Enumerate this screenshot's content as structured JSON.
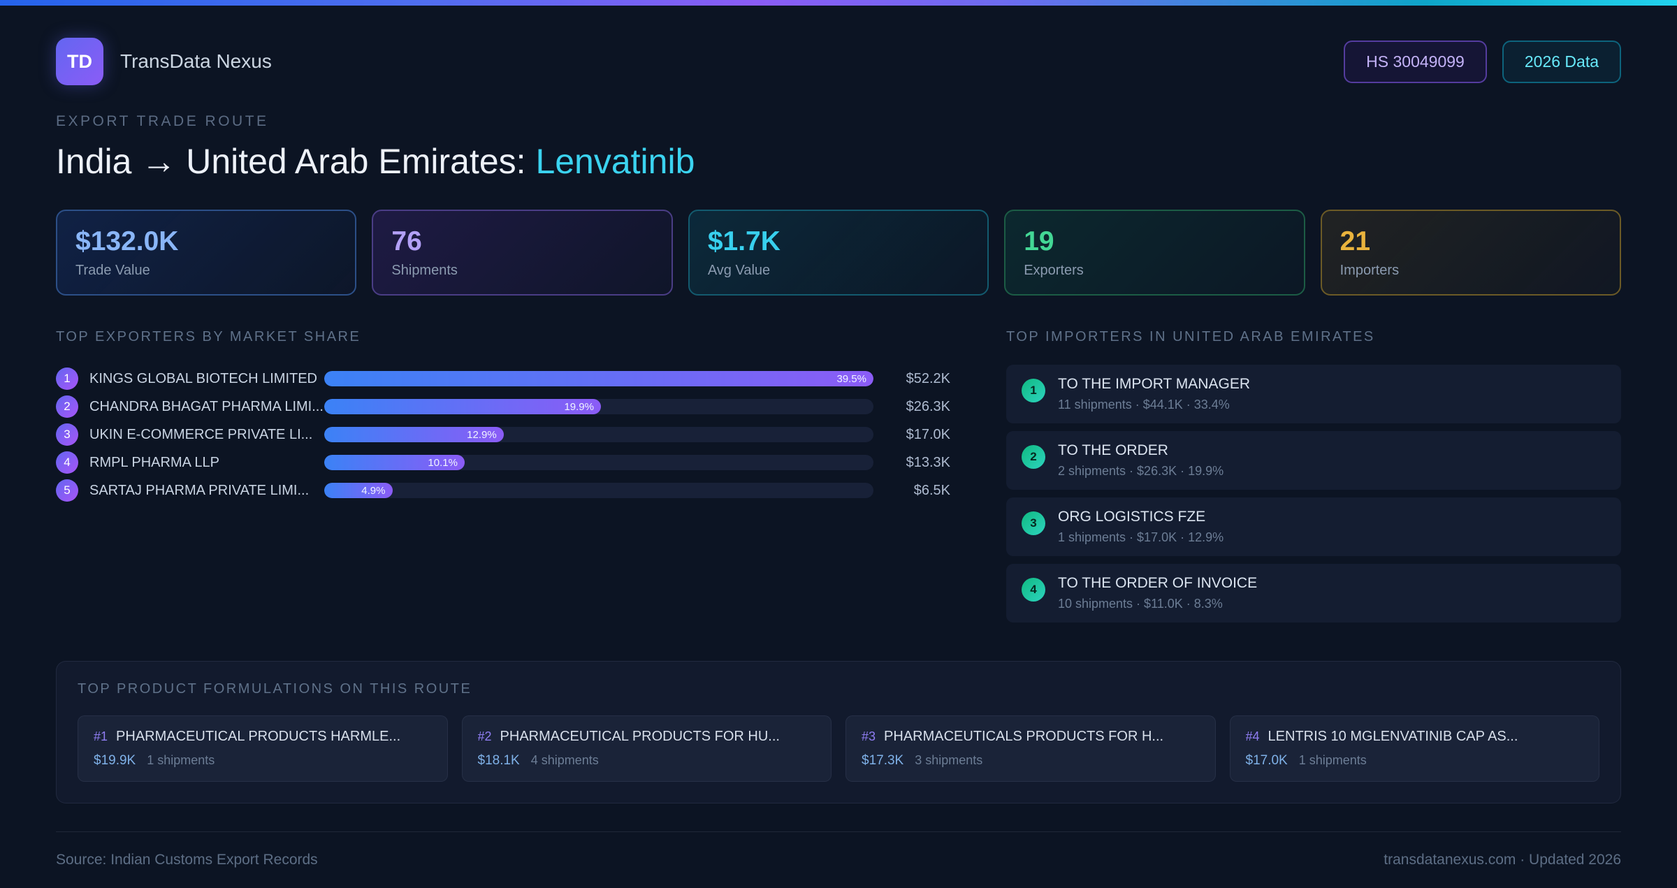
{
  "header": {
    "logo": "TD",
    "app_name": "TransData Nexus",
    "hs_badge": "HS 30049099",
    "year_badge": "2026 Data"
  },
  "hero": {
    "eyebrow": "EXPORT TRADE ROUTE",
    "title_main": "India → United Arab Emirates: ",
    "title_accent": "Lenvatinib"
  },
  "stats": [
    {
      "value": "$132.0K",
      "label": "Trade Value",
      "accent": "#8ab6f8"
    },
    {
      "value": "76",
      "label": "Shipments",
      "accent": "#b3a0f7"
    },
    {
      "value": "$1.7K",
      "label": "Avg Value",
      "accent": "#38d0ee"
    },
    {
      "value": "19",
      "label": "Exporters",
      "accent": "#43d795"
    },
    {
      "value": "21",
      "label": "Importers",
      "accent": "#e9b33d"
    }
  ],
  "exporters": {
    "heading": "TOP EXPORTERS BY MARKET SHARE",
    "rows": [
      {
        "rank": "1",
        "name": "KINGS GLOBAL BIOTECH LIMITED",
        "pct": "39.5%",
        "value": "$52.2K"
      },
      {
        "rank": "2",
        "name": "CHANDRA BHAGAT PHARMA LIMI...",
        "pct": "19.9%",
        "value": "$26.3K"
      },
      {
        "rank": "3",
        "name": "UKIN E-COMMERCE PRIVATE LI...",
        "pct": "12.9%",
        "value": "$17.0K"
      },
      {
        "rank": "4",
        "name": "RMPL PHARMA LLP",
        "pct": "10.1%",
        "value": "$13.3K"
      },
      {
        "rank": "5",
        "name": "SARTAJ PHARMA PRIVATE LIMI...",
        "pct": "4.9%",
        "value": "$6.5K"
      }
    ]
  },
  "importers": {
    "heading": "TOP IMPORTERS IN UNITED ARAB EMIRATES",
    "rows": [
      {
        "rank": "1",
        "name": "TO THE IMPORT MANAGER",
        "meta": "11 shipments · $44.1K · 33.4%"
      },
      {
        "rank": "2",
        "name": "TO THE ORDER",
        "meta": "2 shipments · $26.3K · 19.9%"
      },
      {
        "rank": "3",
        "name": "ORG LOGISTICS FZE",
        "meta": "1 shipments · $17.0K · 12.9%"
      },
      {
        "rank": "4",
        "name": "TO THE ORDER OF INVOICE",
        "meta": "10 shipments · $11.0K · 8.3%"
      }
    ]
  },
  "products": {
    "heading": "TOP PRODUCT FORMULATIONS ON THIS ROUTE",
    "cards": [
      {
        "rank": "#1",
        "name": "PHARMACEUTICAL PRODUCTS HARMLE...",
        "value": "$19.9K",
        "shipments": "1 shipments"
      },
      {
        "rank": "#2",
        "name": "PHARMACEUTICAL PRODUCTS FOR HU...",
        "value": "$18.1K",
        "shipments": "4 shipments"
      },
      {
        "rank": "#3",
        "name": "PHARMACEUTICALS PRODUCTS FOR H...",
        "value": "$17.3K",
        "shipments": "3 shipments"
      },
      {
        "rank": "#4",
        "name": "LENTRIS 10 MGLENVATINIB CAP AS...",
        "value": "$17.0K",
        "shipments": "1 shipments"
      }
    ]
  },
  "footer": {
    "source": "Source: Indian Customs Export Records",
    "site": "transdatanexus.com · Updated 2026"
  },
  "colors": {
    "background": "#0c1423",
    "accent_cyan": "#3bd3f0",
    "accent_purple": "#8b5cf6",
    "accent_blue": "#3b82f6",
    "accent_green": "#10b981",
    "accent_amber": "#e9b33d"
  }
}
